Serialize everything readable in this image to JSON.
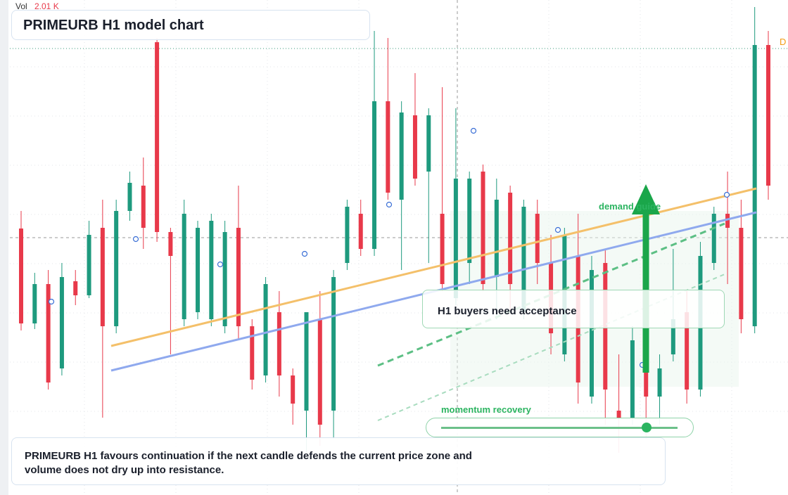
{
  "chart_data": {
    "type": "candlestick",
    "title": "PRIMEURB H1 model chart",
    "volume": {
      "label": "Vol",
      "value": 2010,
      "value_label": "2.01 K"
    },
    "annotations": {
      "zone": "demand guide",
      "note": "H1 buyers need acceptance",
      "slider": "momentum recovery",
      "edge": "D"
    },
    "footer": "PRIMEURB H1 favours continuation if the next candle defends the current price zone and volume does not dry up into resistance.",
    "up_color": "#1e9a7e",
    "down_color": "#e8394a",
    "ylim": [
      0,
      704
    ],
    "open": [
      379,
      244,
      300,
      180,
      304,
      284,
      380,
      240,
      404,
      440,
      644,
      374,
      250,
      260,
      250,
      240,
      380,
      240,
      170,
      260,
      170,
      120,
      250,
      120,
      330,
      400,
      350,
      560,
      420,
      540,
      460,
      400,
      280,
      330,
      460,
      310,
      430,
      260,
      400,
      330,
      200,
      340,
      140,
      330,
      120,
      110,
      230,
      140,
      200,
      260,
      150,
      330,
      400,
      380,
      240,
      640
    ],
    "high": [
      404,
      316,
      320,
      330,
      320,
      390,
      420,
      420,
      460,
      480,
      650,
      380,
      420,
      390,
      400,
      390,
      440,
      250,
      310,
      290,
      180,
      260,
      290,
      320,
      420,
      420,
      660,
      650,
      560,
      600,
      550,
      580,
      550,
      460,
      470,
      450,
      440,
      420,
      420,
      370,
      380,
      400,
      340,
      350,
      200,
      240,
      250,
      200,
      350,
      290,
      360,
      410,
      460,
      420,
      694,
      660
    ],
    "low": [
      234,
      236,
      150,
      170,
      270,
      280,
      110,
      230,
      390,
      350,
      360,
      200,
      240,
      250,
      240,
      230,
      220,
      150,
      160,
      140,
      100,
      60,
      70,
      80,
      320,
      340,
      340,
      420,
      320,
      440,
      330,
      290,
      270,
      300,
      290,
      250,
      260,
      250,
      300,
      200,
      190,
      130,
      130,
      100,
      60,
      100,
      80,
      100,
      190,
      130,
      140,
      320,
      300,
      230,
      230,
      420
    ],
    "close": [
      244,
      300,
      160,
      310,
      284,
      370,
      240,
      404,
      444,
      380,
      374,
      340,
      400,
      380,
      390,
      374,
      240,
      164,
      300,
      170,
      130,
      260,
      100,
      310,
      410,
      350,
      560,
      430,
      544,
      450,
      540,
      300,
      450,
      450,
      300,
      420,
      300,
      410,
      330,
      230,
      370,
      160,
      320,
      150,
      110,
      220,
      140,
      180,
      250,
      150,
      340,
      400,
      380,
      250,
      640,
      440
    ]
  }
}
